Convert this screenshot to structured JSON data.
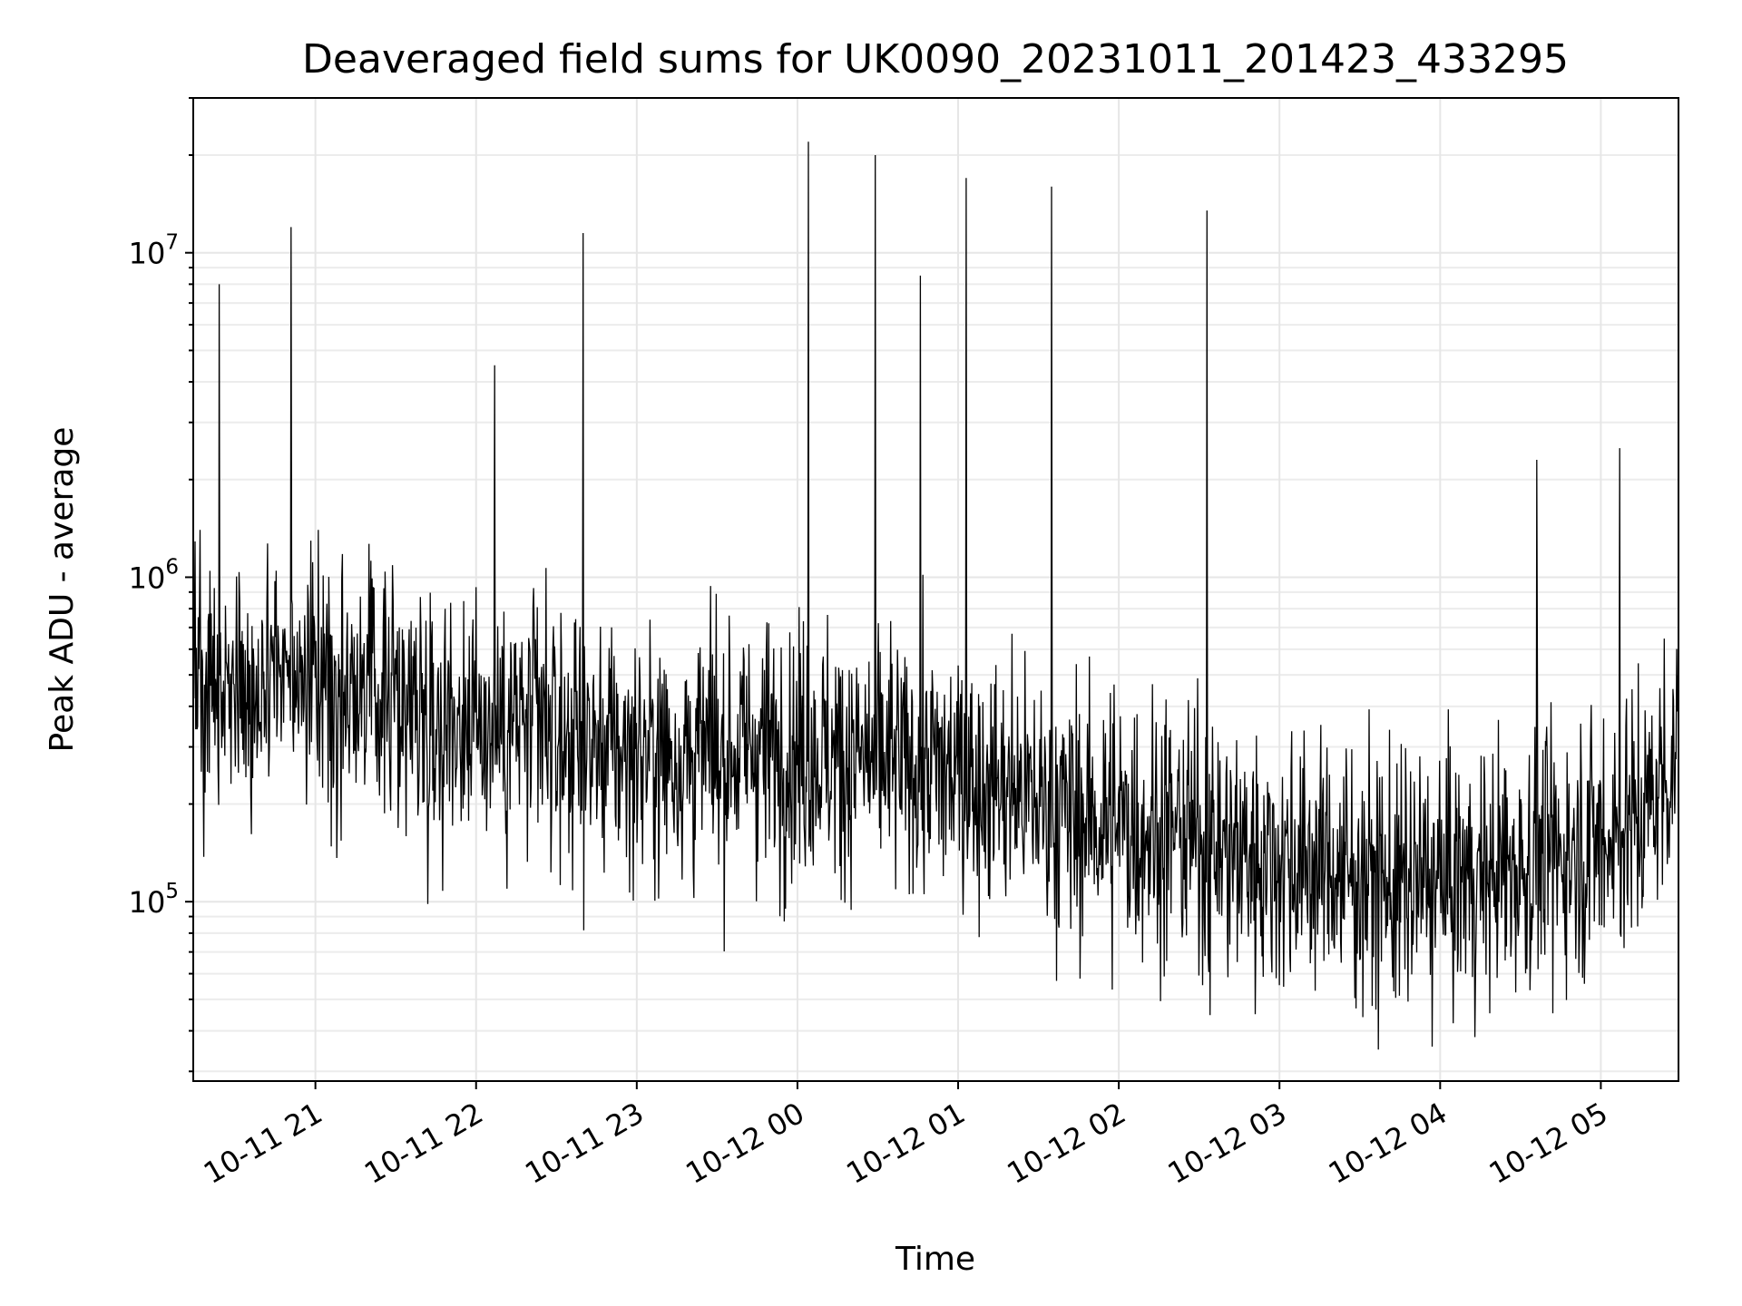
{
  "chart_data": {
    "type": "line",
    "title": "Deaveraged field sums for UK0090_20231011_201423_433295",
    "xlabel": "Time",
    "ylabel": "Peak ADU - average",
    "yscale": "log",
    "ylim": [
      28000,
      30000000
    ],
    "xlim": [
      "2023-10-11 20:14:23",
      "2023-10-12 05:29:00"
    ],
    "grid": true,
    "grid_minor": true,
    "line_color": "#000000",
    "x_ticks": [
      {
        "x": "2023-10-11 21:00",
        "label": "10-11 21"
      },
      {
        "x": "2023-10-11 22:00",
        "label": "10-11 22"
      },
      {
        "x": "2023-10-11 23:00",
        "label": "10-11 23"
      },
      {
        "x": "2023-10-12 00:00",
        "label": "10-12 00"
      },
      {
        "x": "2023-10-12 01:00",
        "label": "10-12 01"
      },
      {
        "x": "2023-10-12 02:00",
        "label": "10-12 02"
      },
      {
        "x": "2023-10-12 03:00",
        "label": "10-12 03"
      },
      {
        "x": "2023-10-12 04:00",
        "label": "10-12 04"
      },
      {
        "x": "2023-10-12 05:00",
        "label": "10-12 05"
      }
    ],
    "y_ticks": [
      {
        "value": 100000,
        "base": "10",
        "exp": "5"
      },
      {
        "value": 1000000,
        "base": "10",
        "exp": "6"
      },
      {
        "value": 10000000,
        "base": "10",
        "exp": "7"
      }
    ],
    "spikes": [
      {
        "x": "2023-10-11 20:24",
        "y": 8000000
      },
      {
        "x": "2023-10-11 20:51",
        "y": 12000000
      },
      {
        "x": "2023-10-11 22:07",
        "y": 4500000
      },
      {
        "x": "2023-10-11 22:40",
        "y": 11500000
      },
      {
        "x": "2023-10-12 00:04",
        "y": 22000000
      },
      {
        "x": "2023-10-12 00:29",
        "y": 20000000
      },
      {
        "x": "2023-10-12 00:46",
        "y": 8500000
      },
      {
        "x": "2023-10-12 01:03",
        "y": 17000000
      },
      {
        "x": "2023-10-12 01:35",
        "y": 16000000
      },
      {
        "x": "2023-10-12 02:33",
        "y": 13500000
      },
      {
        "x": "2023-10-12 04:36",
        "y": 2300000
      },
      {
        "x": "2023-10-12 05:07",
        "y": 2500000
      }
    ],
    "anchors": [
      {
        "x": "2023-10-11 20:14",
        "y": 450000
      },
      {
        "x": "2023-10-11 20:45",
        "y": 500000
      },
      {
        "x": "2023-10-11 21:15",
        "y": 480000
      },
      {
        "x": "2023-10-11 21:45",
        "y": 380000
      },
      {
        "x": "2023-10-11 22:15",
        "y": 350000
      },
      {
        "x": "2023-10-11 22:45",
        "y": 300000
      },
      {
        "x": "2023-10-11 23:15",
        "y": 280000
      },
      {
        "x": "2023-10-11 23:45",
        "y": 300000
      },
      {
        "x": "2023-10-12 00:15",
        "y": 280000
      },
      {
        "x": "2023-10-12 00:45",
        "y": 260000
      },
      {
        "x": "2023-10-12 01:15",
        "y": 230000
      },
      {
        "x": "2023-10-12 01:45",
        "y": 180000
      },
      {
        "x": "2023-10-12 02:15",
        "y": 170000
      },
      {
        "x": "2023-10-12 02:45",
        "y": 140000
      },
      {
        "x": "2023-10-12 03:15",
        "y": 130000
      },
      {
        "x": "2023-10-12 03:45",
        "y": 110000
      },
      {
        "x": "2023-10-12 04:15",
        "y": 120000
      },
      {
        "x": "2023-10-12 04:45",
        "y": 140000
      },
      {
        "x": "2023-10-12 05:15",
        "y": 180000
      },
      {
        "x": "2023-10-12 05:29",
        "y": 300000
      }
    ]
  }
}
